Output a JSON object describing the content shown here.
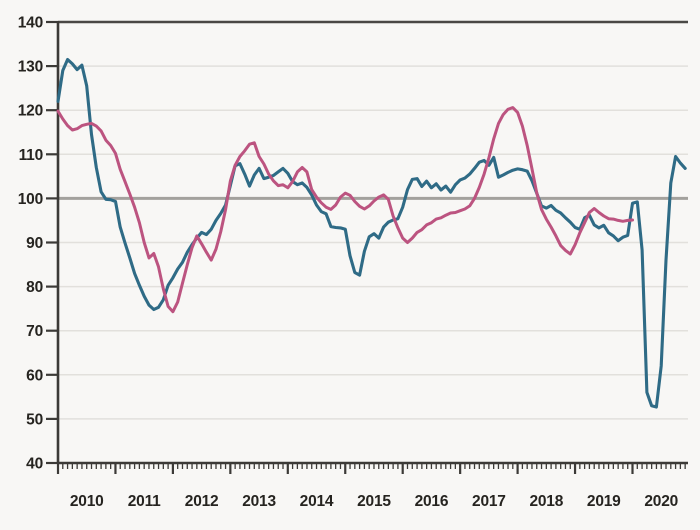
{
  "chart_data": {
    "type": "line",
    "title": "",
    "xlabel": "",
    "ylabel": "",
    "x_axis": {
      "start_year": 2010,
      "tick_years": [
        "2010",
        "2011",
        "2012",
        "2013",
        "2014",
        "2015",
        "2016",
        "2017",
        "2018",
        "2019",
        "2020"
      ],
      "minor_tick": "monthly"
    },
    "y_axis": {
      "min": 40,
      "max": 140,
      "tick_step": 10,
      "ticks": [
        "140",
        "130",
        "120",
        "110",
        "100",
        "90",
        "80",
        "70",
        "60",
        "50",
        "40"
      ],
      "reference_line": 100
    },
    "layout": {
      "grid": true,
      "legend": false,
      "frequency": "monthly"
    },
    "style": {
      "background": "#f8f7f5",
      "grid_color": "#e2e0dc",
      "reference_line_color": "#a3a19d",
      "axis_color": "#3c3a37",
      "top_border_color": "#4a4845",
      "text_color": "#262420",
      "teal_color": "#2f6b86",
      "pink_color": "#bc5480"
    },
    "series": [
      {
        "name": "series-teal",
        "color": "#2f6b86",
        "start": "2010-01",
        "end": "2020-12",
        "values": [
          122,
          129,
          131.5,
          130.5,
          129.2,
          130.2,
          125.5,
          114.5,
          107,
          101.5,
          99.8,
          99.7,
          99.3,
          93.5,
          89.9,
          86.5,
          83,
          80.3,
          77.8,
          75.8,
          74.8,
          75.3,
          77,
          80.3,
          82,
          84,
          85.5,
          87.8,
          89.5,
          91,
          92.3,
          91.8,
          93,
          95,
          96.6,
          98.5,
          103,
          107.4,
          107.9,
          105.5,
          102.8,
          105.3,
          106.8,
          104.5,
          104.8,
          105.2,
          106,
          106.8,
          105.7,
          103.8,
          103.1,
          103.5,
          102.5,
          100.8,
          98.5,
          97,
          96.5,
          93.6,
          93.4,
          93.3,
          93,
          87,
          83.2,
          82.6,
          88,
          91.3,
          92,
          91,
          93.5,
          94.6,
          95.1,
          95.4,
          98,
          102,
          104.3,
          104.5,
          102.7,
          103.9,
          102.4,
          103.3,
          101.9,
          102.8,
          101.4,
          103.1,
          104.2,
          104.6,
          105.5,
          106.8,
          108.2,
          108.6,
          107.5,
          109.3,
          104.8,
          105.3,
          105.9,
          106.4,
          106.7,
          106.5,
          106.2,
          104,
          101.2,
          98.3,
          97.8,
          98.4,
          97.3,
          96.7,
          95.6,
          94.6,
          93.4,
          93,
          95.6,
          96.2,
          94,
          93.3,
          93.9,
          92.2,
          91.5,
          90.4,
          91.2,
          91.6,
          98.9,
          99.2,
          88.3,
          56,
          53,
          52.7,
          62,
          86,
          103.5,
          109.5,
          108,
          106.8
        ]
      },
      {
        "name": "series-pink",
        "color": "#bc5480",
        "start": "2010-01",
        "end": "2020-01",
        "values": [
          119.8,
          118,
          116.5,
          115.5,
          115.8,
          116.5,
          116.8,
          117,
          116.4,
          115.3,
          113.2,
          112,
          110.2,
          106.6,
          103.8,
          101,
          98,
          94.5,
          90,
          86.5,
          87.5,
          84.5,
          79.5,
          75.5,
          74.3,
          76.5,
          80.8,
          85,
          88.8,
          91.5,
          89.7,
          87.8,
          86,
          88.5,
          92.5,
          97.5,
          104,
          107.5,
          109.5,
          110.8,
          112.3,
          112.6,
          109.5,
          107.8,
          105.5,
          104,
          102.9,
          103.1,
          102.4,
          103.8,
          106,
          107,
          106,
          102,
          100.3,
          99,
          98,
          97.5,
          98.5,
          100.3,
          101.2,
          100.7,
          99.3,
          98.2,
          97.6,
          98.3,
          99.4,
          100.3,
          100.8,
          99.8,
          96,
          93.3,
          91,
          90,
          91,
          92.3,
          92.9,
          94,
          94.5,
          95.3,
          95.6,
          96.2,
          96.7,
          96.8,
          97.2,
          97.6,
          98.3,
          100,
          102.5,
          105.5,
          109.2,
          113.5,
          117,
          119,
          120.2,
          120.6,
          119.5,
          116.4,
          112,
          106.7,
          101.3,
          97.5,
          95.3,
          93.5,
          91.5,
          89.3,
          88.2,
          87.4,
          89.5,
          92.2,
          94.5,
          96.8,
          97.7,
          96.8,
          96,
          95.4,
          95.3,
          95,
          94.8,
          95,
          95.1
        ]
      }
    ]
  }
}
